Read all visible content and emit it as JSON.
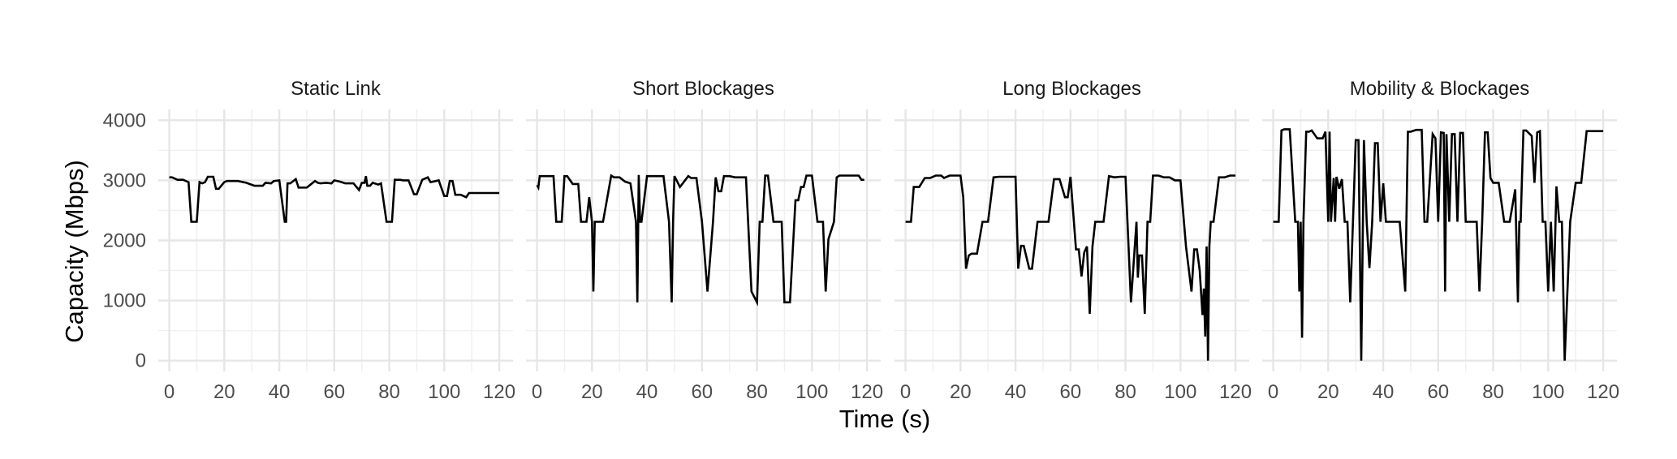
{
  "chart_data": {
    "type": "line",
    "layout": "faceted",
    "xlabel": "Time (s)",
    "ylabel": "Capacity (Mbps)",
    "xlim": [
      -4,
      125
    ],
    "ylim": [
      -180,
      4180
    ],
    "xticks": [
      0,
      20,
      40,
      60,
      80,
      100,
      120
    ],
    "yticks": [
      0,
      1000,
      2000,
      3000,
      4000
    ],
    "grid": true,
    "line_color": "#000000",
    "panels": [
      {
        "title": "Static Link",
        "x": [
          0,
          1,
          3,
          5,
          7,
          8,
          10,
          11,
          12,
          13,
          14,
          16,
          17,
          18,
          20,
          21,
          22,
          25,
          28,
          31,
          34,
          35,
          37,
          38,
          40,
          42,
          42.5,
          43,
          44,
          46,
          47,
          50,
          53,
          54,
          55,
          57,
          59,
          60,
          62,
          64,
          67,
          69,
          70,
          71,
          71.5,
          72,
          73,
          74,
          76,
          77,
          79,
          81,
          82,
          84,
          85,
          87,
          89,
          90,
          92,
          94,
          95,
          97,
          98,
          100,
          101,
          102,
          103,
          104,
          106,
          108,
          109,
          111,
          113,
          115,
          116,
          117,
          118,
          120
        ],
        "values": [
          3050,
          3050,
          3010,
          3010,
          2970,
          2310,
          2310,
          2970,
          2950,
          2970,
          3060,
          3060,
          2860,
          2860,
          2970,
          2990,
          2990,
          2990,
          2960,
          2910,
          2910,
          2960,
          2950,
          2990,
          3000,
          2310,
          2310,
          2950,
          2950,
          3020,
          2880,
          2880,
          2990,
          2960,
          2950,
          2960,
          2950,
          3000,
          2980,
          2950,
          2950,
          2840,
          2960,
          2960,
          3070,
          2910,
          2910,
          2960,
          2930,
          2950,
          2310,
          2310,
          3010,
          3010,
          3000,
          3000,
          2770,
          2770,
          3010,
          3050,
          2970,
          2990,
          3000,
          2740,
          2740,
          2990,
          2990,
          2760,
          2760,
          2720,
          2790,
          2790,
          2790,
          2790,
          2790,
          2790,
          2790,
          2790
        ]
      },
      {
        "title": "Short Blockages",
        "x": [
          0,
          0.5,
          1,
          2,
          6,
          7,
          9,
          10,
          11,
          13,
          15,
          16,
          18,
          19,
          20,
          20.5,
          21,
          21.5,
          22,
          23,
          24,
          27,
          28,
          30,
          32,
          34,
          36,
          36.5,
          37,
          37.5,
          38,
          40,
          42,
          44,
          46,
          48,
          49,
          49.5,
          50,
          52,
          55,
          56,
          58,
          60,
          62,
          64,
          65,
          66,
          67,
          68,
          69,
          70,
          72,
          73,
          76,
          78,
          80,
          81,
          82,
          83,
          84,
          86,
          87,
          88,
          89,
          90,
          92,
          94,
          95,
          96,
          97,
          98,
          100,
          102,
          104,
          105,
          106,
          108,
          109,
          110,
          111,
          113,
          115,
          117,
          118,
          119
        ],
        "values": [
          2920,
          2880,
          3070,
          3070,
          3070,
          2310,
          2310,
          3070,
          3070,
          2940,
          2940,
          2310,
          2310,
          2720,
          2310,
          1150,
          2310,
          2310,
          2310,
          2310,
          2310,
          3080,
          3050,
          3050,
          2980,
          2950,
          2310,
          970,
          3090,
          2310,
          2310,
          3070,
          3070,
          3070,
          3070,
          2310,
          970,
          2310,
          3070,
          2890,
          3070,
          3040,
          3040,
          2310,
          1150,
          2310,
          3050,
          2820,
          2820,
          3070,
          3070,
          3070,
          3050,
          3050,
          3050,
          1150,
          970,
          2310,
          2310,
          3080,
          3080,
          2310,
          2310,
          2310,
          2310,
          970,
          970,
          2670,
          2670,
          2890,
          2890,
          3080,
          3080,
          2310,
          2310,
          1150,
          2020,
          2310,
          3050,
          3080,
          3080,
          3080,
          3080,
          3080,
          3010,
          3010
        ]
      },
      {
        "title": "Long Blockages",
        "x": [
          0,
          2,
          3,
          5,
          7,
          9,
          11,
          13,
          14,
          16,
          18,
          20,
          21,
          22,
          23,
          24,
          26,
          28,
          30,
          32,
          34,
          36,
          38,
          40,
          41,
          42,
          43,
          45,
          46,
          48,
          50,
          52,
          54,
          56,
          58,
          59,
          60,
          62,
          63,
          64,
          65,
          66,
          67,
          68,
          69,
          70,
          72,
          74,
          76,
          78,
          80,
          82,
          84,
          84.5,
          85,
          86,
          87,
          88,
          89,
          90,
          92,
          94,
          96,
          98,
          100,
          102,
          104,
          105,
          106,
          107,
          108,
          108.5,
          109,
          109.5,
          110,
          110.5,
          111,
          112,
          114,
          116,
          118,
          120
        ],
        "values": [
          2310,
          2310,
          2890,
          2890,
          3040,
          3040,
          3080,
          3080,
          3040,
          3080,
          3080,
          3080,
          2720,
          1530,
          1750,
          1780,
          1780,
          2310,
          2310,
          3050,
          3060,
          3060,
          3060,
          3060,
          1530,
          1910,
          1910,
          1530,
          1530,
          2310,
          2310,
          2310,
          3020,
          3020,
          2720,
          2720,
          3060,
          1850,
          1850,
          1400,
          1800,
          1900,
          780,
          1900,
          2310,
          2310,
          2310,
          3070,
          3050,
          3060,
          3060,
          970,
          2310,
          1380,
          1750,
          1750,
          780,
          2310,
          2310,
          3080,
          3080,
          3050,
          3050,
          3000,
          3000,
          1900,
          1150,
          1850,
          1850,
          1500,
          760,
          1200,
          400,
          1900,
          0,
          1900,
          2310,
          2310,
          3050,
          3050,
          3080,
          3080
        ]
      },
      {
        "title": "Mobility & Blockages",
        "x": [
          0,
          2,
          3,
          4,
          6,
          8,
          9,
          9.5,
          10,
          10.5,
          11,
          12,
          13,
          14,
          16,
          18,
          19,
          20,
          20.5,
          21,
          22,
          22.5,
          23,
          24,
          25,
          26,
          27,
          28,
          29,
          30,
          31,
          32,
          33,
          34,
          35,
          36,
          37,
          38,
          39,
          40,
          41,
          42,
          43,
          44,
          46,
          48,
          49,
          50,
          52,
          54,
          55,
          56,
          58,
          59,
          60,
          61,
          62,
          62.5,
          63,
          64,
          65,
          66,
          67,
          68,
          69,
          70,
          72,
          74,
          75,
          76,
          77,
          78,
          79,
          80,
          82,
          84,
          86,
          88,
          89,
          89.5,
          90,
          91,
          92,
          94,
          95,
          96,
          97,
          98,
          99,
          100,
          101,
          102,
          103,
          104,
          105,
          106,
          108,
          110,
          112,
          114,
          116,
          118,
          120
        ],
        "values": [
          2310,
          2310,
          3830,
          3850,
          3850,
          2310,
          2310,
          1150,
          2310,
          380,
          2310,
          3810,
          3810,
          3830,
          3700,
          3700,
          3810,
          2310,
          3810,
          2310,
          3040,
          2310,
          3060,
          2860,
          3020,
          2310,
          2310,
          970,
          2310,
          3670,
          3670,
          0,
          3670,
          2310,
          1540,
          2310,
          3620,
          3620,
          2310,
          2950,
          2310,
          2310,
          2310,
          2310,
          2310,
          1150,
          3810,
          3810,
          3840,
          3840,
          2310,
          2310,
          3770,
          3700,
          2310,
          3800,
          3790,
          1150,
          3770,
          2310,
          3770,
          3770,
          2310,
          3790,
          3790,
          2310,
          2310,
          2310,
          1150,
          2310,
          3800,
          3800,
          3040,
          2960,
          2960,
          2310,
          2310,
          2850,
          970,
          2310,
          2310,
          3830,
          3830,
          3740,
          2960,
          3800,
          3820,
          2310,
          2310,
          1150,
          2310,
          1150,
          2900,
          2310,
          2310,
          0,
          2310,
          2960,
          2960,
          3820,
          3820,
          3820,
          3820
        ]
      }
    ]
  }
}
